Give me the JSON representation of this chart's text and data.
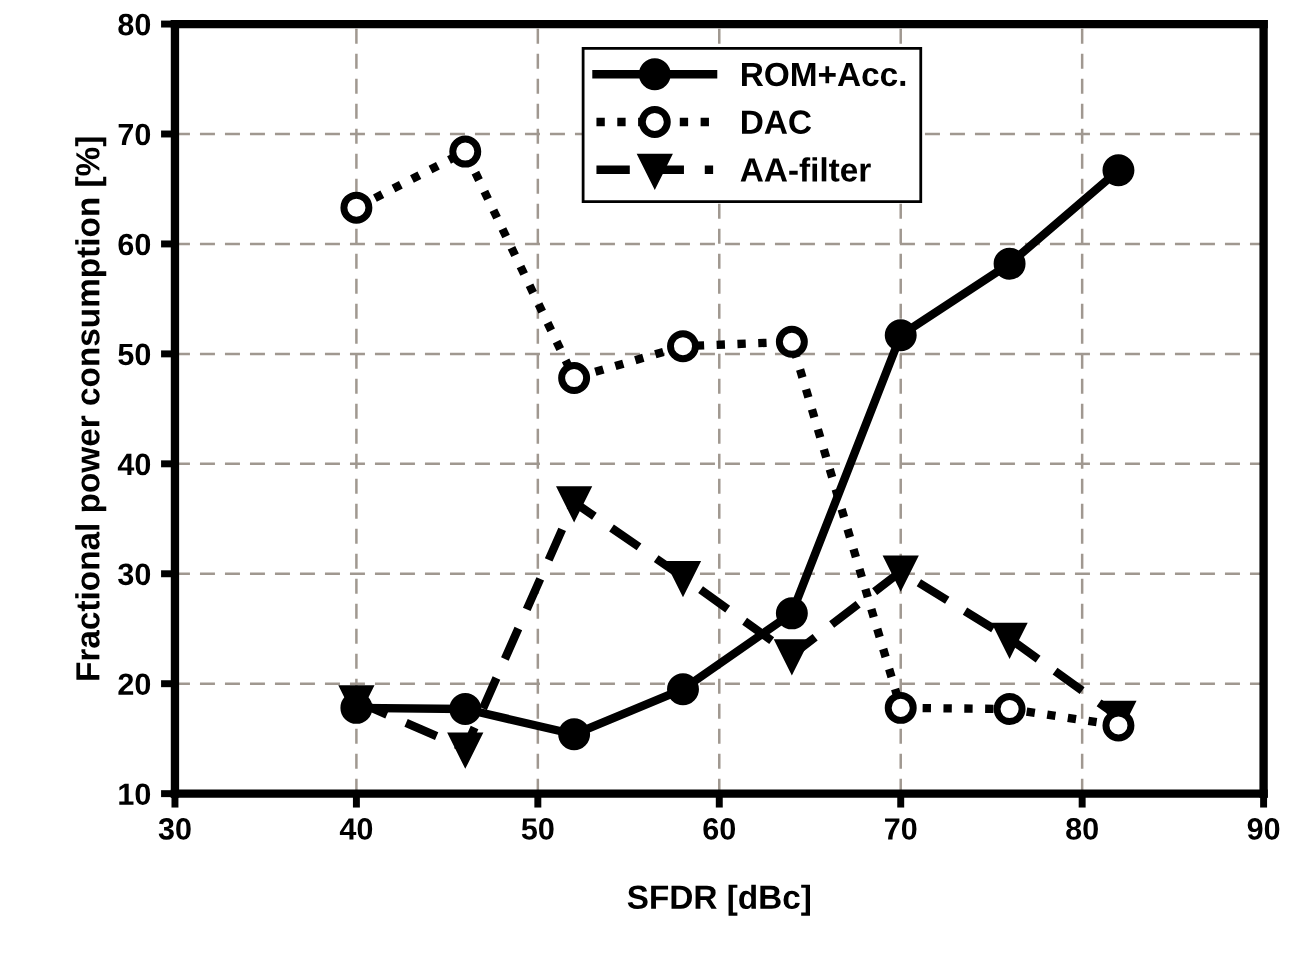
{
  "chart_data": {
    "type": "line",
    "xlabel": "SFDR [dBc]",
    "ylabel": "Fractional power consumption [%]",
    "x": [
      40,
      46,
      52,
      58,
      64,
      70,
      76,
      82
    ],
    "series": [
      {
        "name": "ROM+Acc.",
        "color": "#000000",
        "marker": "circle",
        "line_style": "solid",
        "values": [
          17.8,
          17.7,
          15.4,
          19.5,
          26.4,
          51.7,
          58.2,
          66.7
        ]
      },
      {
        "name": "DAC",
        "color": "#000000",
        "marker": "open circle",
        "line_style": "dotted",
        "values": [
          63.3,
          68.4,
          47.8,
          50.7,
          51.1,
          17.8,
          17.7,
          16.2
        ]
      },
      {
        "name": "AA-filter",
        "color": "#000000",
        "marker": "triangle",
        "line_style": "dashed",
        "values": [
          18.4,
          14.1,
          36.5,
          29.7,
          22.6,
          30.2,
          24.1,
          17.0
        ]
      }
    ],
    "xlim": [
      30,
      90
    ],
    "xticks": [
      30,
      40,
      50,
      60,
      70,
      80,
      90
    ],
    "ylim": [
      10,
      80
    ],
    "yticks": [
      10,
      20,
      30,
      40,
      50,
      60,
      70,
      80
    ],
    "grid": true,
    "legend": "top right"
  }
}
